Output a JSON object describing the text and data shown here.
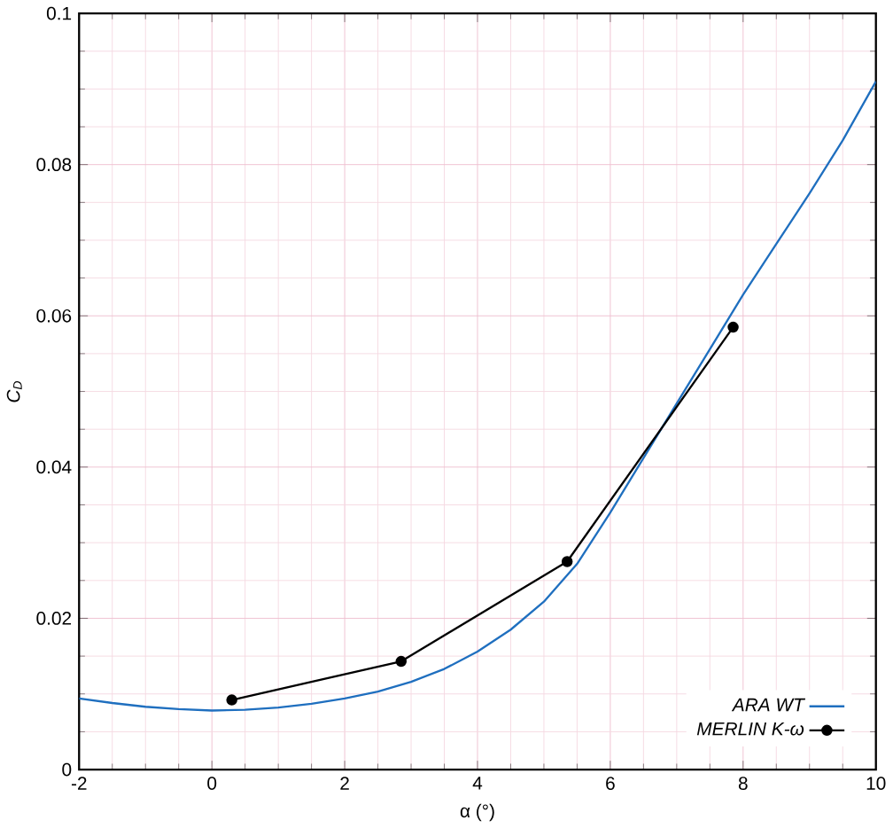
{
  "chart_data": {
    "type": "line",
    "xlabel": "α (°)",
    "ylabel": "C$_{D}$",
    "xlim": [
      -2,
      10
    ],
    "ylim": [
      0,
      0.1
    ],
    "xticks": [
      -2,
      0,
      2,
      4,
      6,
      8,
      10
    ],
    "yticks": [
      0,
      0.02,
      0.04,
      0.06,
      0.08,
      0.1
    ],
    "grid": true,
    "legend": "bottom right",
    "series": [
      {
        "name": "ARA WT",
        "color": "#1f6fbf",
        "marker": "none",
        "x": [
          -2,
          -1.5,
          -1,
          -0.5,
          0,
          0.5,
          1,
          1.5,
          2,
          2.5,
          3,
          3.5,
          4,
          4.5,
          5,
          5.5,
          6,
          6.5,
          7,
          7.5,
          8,
          8.5,
          9,
          9.5,
          10
        ],
        "values": [
          0.0094,
          0.0088,
          0.0083,
          0.008,
          0.0078,
          0.0079,
          0.0082,
          0.0087,
          0.0094,
          0.0103,
          0.0116,
          0.0133,
          0.0156,
          0.0185,
          0.0222,
          0.0272,
          0.034,
          0.0412,
          0.0484,
          0.0556,
          0.0628,
          0.0695,
          0.0762,
          0.0832,
          0.091
        ]
      },
      {
        "name": "MERLIN K-ω",
        "color": "#000000",
        "marker": "circle",
        "x": [
          0.3,
          2.85,
          5.35,
          7.85
        ],
        "values": [
          0.0092,
          0.0143,
          0.0275,
          0.0585
        ]
      }
    ]
  }
}
